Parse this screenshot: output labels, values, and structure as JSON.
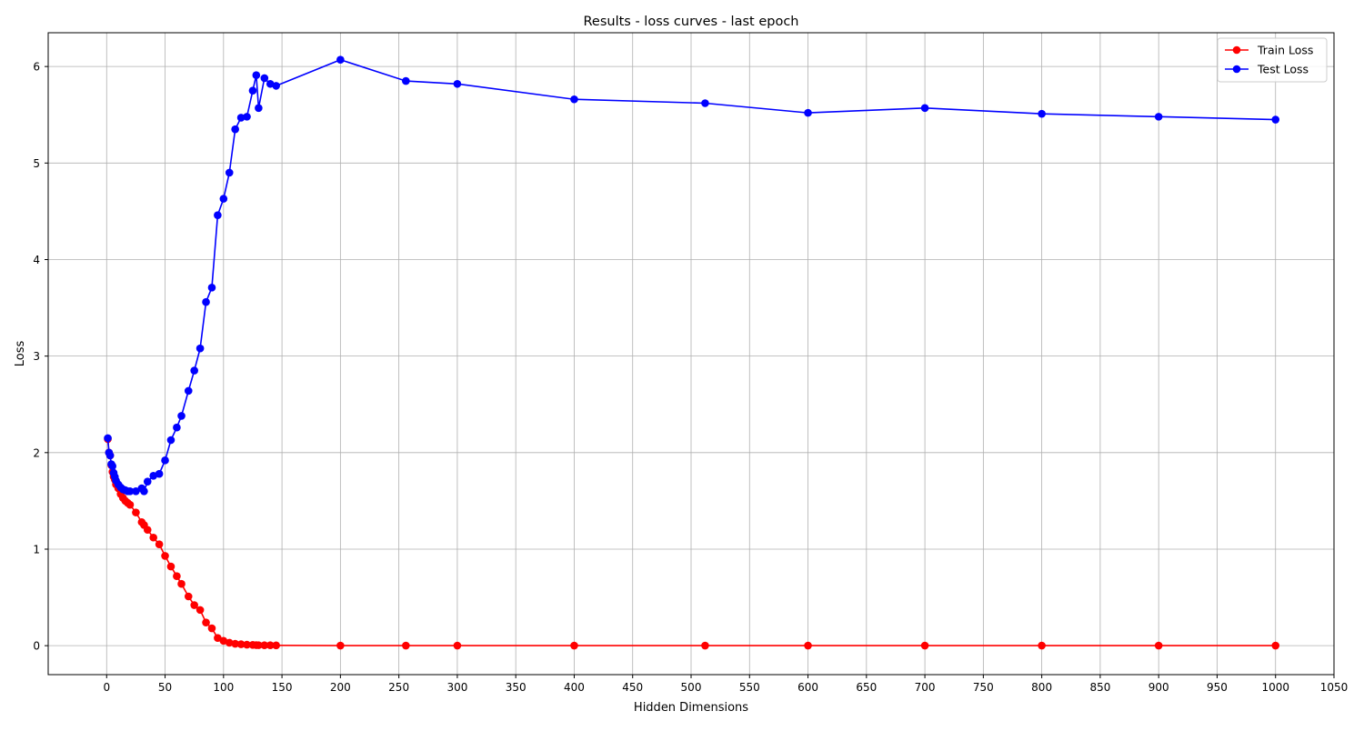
{
  "chart_data": {
    "type": "line",
    "title": "Results - loss curves - last epoch",
    "xlabel": "Hidden Dimensions",
    "ylabel": "Loss",
    "xlim": [
      -50,
      1050
    ],
    "ylim": [
      -0.3,
      6.35
    ],
    "x_ticks": [
      0,
      50,
      100,
      150,
      200,
      250,
      300,
      350,
      400,
      450,
      500,
      550,
      600,
      650,
      700,
      750,
      800,
      850,
      900,
      950,
      1000,
      1050
    ],
    "y_ticks": [
      0,
      1,
      2,
      3,
      4,
      5,
      6
    ],
    "grid": true,
    "legend_position": "top-right",
    "series": [
      {
        "name": "Train Loss",
        "color": "#ff0000",
        "x": [
          1,
          2,
          3,
          4,
          5,
          6,
          7,
          8,
          10,
          12,
          14,
          16,
          18,
          20,
          25,
          30,
          32,
          35,
          40,
          45,
          50,
          55,
          60,
          64,
          70,
          75,
          80,
          85,
          90,
          95,
          100,
          105,
          110,
          115,
          120,
          125,
          128,
          130,
          135,
          140,
          145,
          200,
          256,
          300,
          400,
          512,
          600,
          700,
          800,
          900,
          1000
        ],
        "y": [
          2.14,
          2.0,
          1.97,
          1.87,
          1.8,
          1.75,
          1.72,
          1.67,
          1.63,
          1.57,
          1.53,
          1.5,
          1.48,
          1.46,
          1.38,
          1.28,
          1.25,
          1.2,
          1.12,
          1.05,
          0.93,
          0.82,
          0.72,
          0.64,
          0.51,
          0.42,
          0.37,
          0.24,
          0.18,
          0.08,
          0.05,
          0.03,
          0.02,
          0.015,
          0.01,
          0.008,
          0.006,
          0.005,
          0.004,
          0.004,
          0.003,
          0.001,
          0.001,
          0.001,
          0.001,
          0.001,
          0.001,
          0.001,
          0.001,
          0.001,
          0.001
        ]
      },
      {
        "name": "Test Loss",
        "color": "#0000ff",
        "x": [
          1,
          2,
          3,
          4,
          5,
          6,
          7,
          8,
          10,
          12,
          14,
          16,
          18,
          20,
          25,
          30,
          32,
          35,
          40,
          45,
          50,
          55,
          60,
          64,
          70,
          75,
          80,
          85,
          90,
          95,
          100,
          105,
          110,
          115,
          120,
          125,
          128,
          130,
          135,
          140,
          145,
          200,
          256,
          300,
          400,
          512,
          600,
          700,
          800,
          900,
          1000
        ],
        "y": [
          2.15,
          2.0,
          1.97,
          1.88,
          1.86,
          1.79,
          1.75,
          1.71,
          1.67,
          1.64,
          1.62,
          1.61,
          1.6,
          1.6,
          1.6,
          1.63,
          1.6,
          1.7,
          1.76,
          1.78,
          1.92,
          2.13,
          2.26,
          2.38,
          2.64,
          2.85,
          3.08,
          3.56,
          3.71,
          4.46,
          4.63,
          4.9,
          5.35,
          5.47,
          5.48,
          5.75,
          5.91,
          5.57,
          5.88,
          5.82,
          5.8,
          6.07,
          5.85,
          5.82,
          5.66,
          5.62,
          5.52,
          5.57,
          5.51,
          5.48,
          5.45
        ]
      }
    ]
  }
}
